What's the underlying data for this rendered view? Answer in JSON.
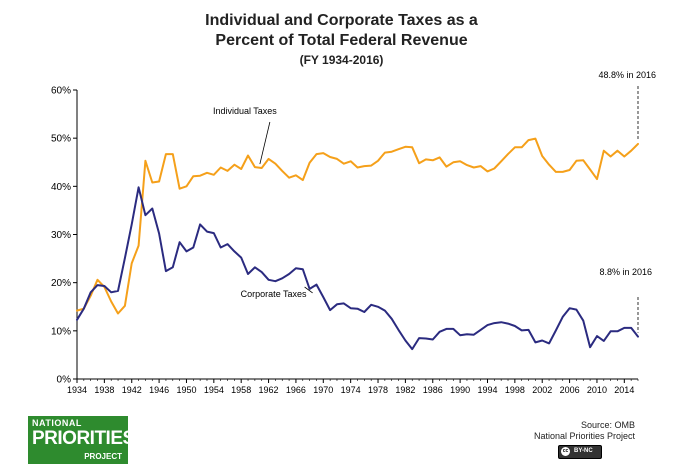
{
  "header": {
    "title_line1": "Individual and Corporate Taxes as a",
    "title_line2": "Percent of Total Federal Revenue",
    "subtitle": "(FY 1934-2016)"
  },
  "chart_data": {
    "type": "line",
    "xlim": [
      1934,
      2016
    ],
    "ylim": [
      0,
      60
    ],
    "y_unit": "%",
    "yticks": [
      0,
      10,
      20,
      30,
      40,
      50,
      60
    ],
    "ytick_labels": [
      "0%",
      "10%",
      "20%",
      "30%",
      "40%",
      "50%",
      "60%"
    ],
    "xticks": [
      1934,
      1938,
      1942,
      1946,
      1950,
      1954,
      1958,
      1962,
      1966,
      1970,
      1974,
      1978,
      1982,
      1986,
      1990,
      1994,
      1998,
      2002,
      2006,
      2010,
      2014
    ],
    "grid": false,
    "x": [
      1934,
      1935,
      1936,
      1937,
      1938,
      1939,
      1940,
      1941,
      1942,
      1943,
      1944,
      1945,
      1946,
      1947,
      1948,
      1949,
      1950,
      1951,
      1952,
      1953,
      1954,
      1955,
      1956,
      1957,
      1958,
      1959,
      1960,
      1961,
      1962,
      1963,
      1964,
      1965,
      1966,
      1967,
      1968,
      1969,
      1970,
      1971,
      1972,
      1973,
      1974,
      1975,
      1976,
      1977,
      1978,
      1979,
      1980,
      1981,
      1982,
      1983,
      1984,
      1985,
      1986,
      1987,
      1988,
      1989,
      1990,
      1991,
      1992,
      1993,
      1994,
      1995,
      1996,
      1997,
      1998,
      1999,
      2000,
      2001,
      2002,
      2003,
      2004,
      2005,
      2006,
      2007,
      2008,
      2009,
      2010,
      2011,
      2012,
      2013,
      2014,
      2015,
      2016
    ],
    "series": [
      {
        "name": "Individual Taxes",
        "color": "#f5a01a",
        "values": [
          14.2,
          14.6,
          17.3,
          20.6,
          19.1,
          16.1,
          13.6,
          15.2,
          24.0,
          27.7,
          45.3,
          40.8,
          41.0,
          46.7,
          46.7,
          39.5,
          40.0,
          42.1,
          42.2,
          42.8,
          42.4,
          43.9,
          43.2,
          44.5,
          43.6,
          46.4,
          44.0,
          43.8,
          45.7,
          44.7,
          43.2,
          41.8,
          42.3,
          41.3,
          44.9,
          46.7,
          46.9,
          46.1,
          45.7,
          44.7,
          45.2,
          43.9,
          44.2,
          44.3,
          45.3,
          47.0,
          47.2,
          47.7,
          48.2,
          48.1,
          44.8,
          45.6,
          45.4,
          46.0,
          44.1,
          45.0,
          45.2,
          44.4,
          43.9,
          44.2,
          43.1,
          43.7,
          45.2,
          46.7,
          48.1,
          48.1,
          49.6,
          49.9,
          46.3,
          44.5,
          43.0,
          43.0,
          43.4,
          45.3,
          45.4,
          43.5,
          41.5,
          47.4,
          46.2,
          47.4,
          46.2,
          47.4,
          48.8
        ]
      },
      {
        "name": "Corporate Taxes",
        "color": "#2b2b80",
        "values": [
          12.3,
          14.6,
          18.0,
          19.5,
          19.3,
          18.0,
          18.3,
          25.1,
          32.1,
          39.8,
          34.0,
          35.4,
          30.2,
          22.4,
          23.2,
          28.4,
          26.5,
          27.3,
          32.1,
          30.6,
          30.3,
          27.3,
          28.0,
          26.5,
          25.2,
          21.8,
          23.2,
          22.2,
          20.6,
          20.3,
          20.9,
          21.8,
          23.0,
          22.8,
          18.7,
          19.6,
          17.0,
          14.3,
          15.5,
          15.7,
          14.7,
          14.6,
          13.9,
          15.4,
          15.0,
          14.2,
          12.5,
          10.2,
          8.0,
          6.2,
          8.5,
          8.4,
          8.2,
          9.8,
          10.4,
          10.4,
          9.1,
          9.3,
          9.2,
          10.2,
          11.2,
          11.6,
          11.8,
          11.5,
          11.0,
          10.1,
          10.2,
          7.6,
          8.0,
          7.4,
          10.1,
          12.9,
          14.7,
          14.4,
          12.1,
          6.6,
          8.9,
          7.9,
          9.9,
          9.9,
          10.6,
          10.6,
          8.8
        ]
      }
    ],
    "annotations": [
      {
        "text": "Individual Taxes",
        "series": "Individual Taxes",
        "x": 1960
      },
      {
        "text": "Corporate Taxes",
        "series": "Corporate Taxes",
        "x": 1968
      },
      {
        "text": "48.8% in 2016",
        "series": "Individual Taxes",
        "x": 2016
      },
      {
        "text": "8.8% in 2016",
        "series": "Corporate Taxes",
        "x": 2016
      }
    ]
  },
  "footer": {
    "source_line1": "Source: OMB",
    "source_line2": "National Priorities Project",
    "logo_line1": "NATIONAL",
    "logo_line2": "PRIORITIES",
    "logo_line3": "PROJECT",
    "license": "BY-NC",
    "license_circle": "cc"
  }
}
